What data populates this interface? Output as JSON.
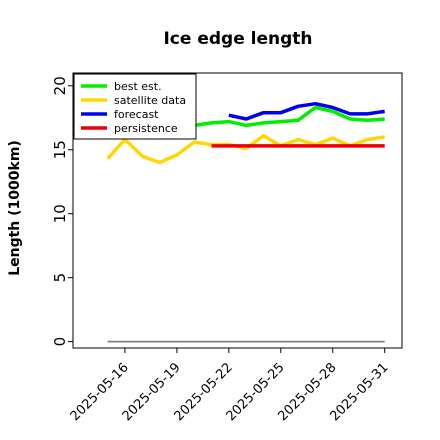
{
  "chart_data": {
    "type": "line",
    "title": "Ice edge length",
    "xlabel": "",
    "ylabel": "Length (1000km)",
    "ylim": [
      -0.5,
      21
    ],
    "xlim": [
      "2025-05-13",
      "2025-06-01"
    ],
    "y_ticks": [
      0,
      5,
      10,
      15,
      20
    ],
    "x_ticks": [
      "2025-05-16",
      "2025-05-19",
      "2025-05-22",
      "2025-05-25",
      "2025-05-28",
      "2025-05-31"
    ],
    "highlighted_x_tick": "2025-05-22",
    "highlight_color": "#228b22",
    "grid": false,
    "legend_position": "top-left",
    "series": [
      {
        "name": "best est.",
        "color": "#00ee00",
        "x": [
          "2025-05-20",
          "2025-05-21",
          "2025-05-22",
          "2025-05-23",
          "2025-05-24",
          "2025-05-25",
          "2025-05-26",
          "2025-05-27",
          "2025-05-28",
          "2025-05-29",
          "2025-05-30",
          "2025-05-31"
        ],
        "y": [
          16.9,
          17.1,
          17.2,
          16.9,
          17.1,
          17.2,
          17.3,
          18.3,
          18.0,
          17.4,
          17.3,
          17.4
        ]
      },
      {
        "name": "satellite data",
        "color": "#ffd700",
        "x": [
          "2025-05-15",
          "2025-05-16",
          "2025-05-17",
          "2025-05-18",
          "2025-05-19",
          "2025-05-20",
          "2025-05-21",
          "2025-05-22",
          "2025-05-23",
          "2025-05-24",
          "2025-05-25",
          "2025-05-26",
          "2025-05-27",
          "2025-05-28",
          "2025-05-29",
          "2025-05-30",
          "2025-05-31"
        ],
        "y": [
          14.3,
          15.8,
          14.5,
          14.0,
          14.6,
          15.6,
          15.4,
          15.4,
          15.1,
          16.1,
          15.3,
          15.8,
          15.4,
          15.9,
          15.3,
          15.8,
          16.0
        ]
      },
      {
        "name": "forecast",
        "color": "#0000ee",
        "x": [
          "2025-05-22",
          "2025-05-23",
          "2025-05-24",
          "2025-05-25",
          "2025-05-26",
          "2025-05-27",
          "2025-05-28",
          "2025-05-29",
          "2025-05-30",
          "2025-05-31"
        ],
        "y": [
          17.7,
          17.4,
          17.9,
          17.9,
          18.4,
          18.6,
          18.3,
          17.8,
          17.8,
          18.0
        ]
      },
      {
        "name": "persistence",
        "color": "#ee0000",
        "x": [
          "2025-05-21",
          "2025-05-31"
        ],
        "y": [
          15.3,
          15.3
        ]
      },
      {
        "name": "",
        "color": "#808080",
        "x": [
          "2025-05-15",
          "2025-05-31"
        ],
        "y": [
          0,
          0
        ]
      }
    ]
  }
}
